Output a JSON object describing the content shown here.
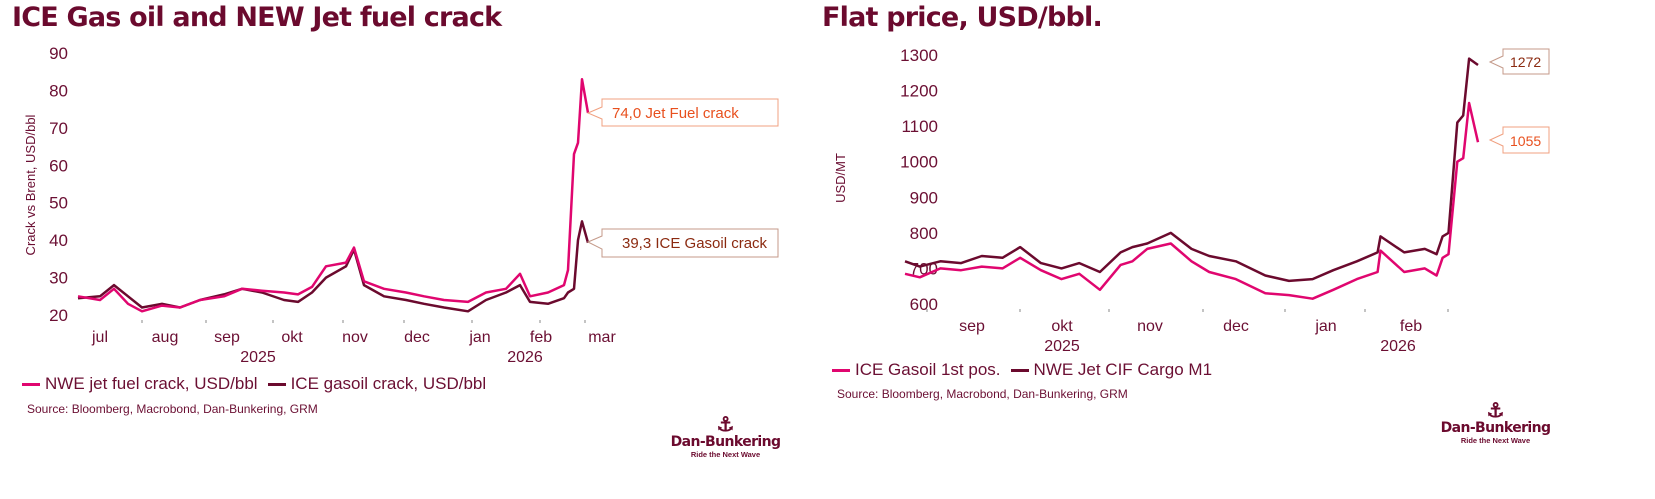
{
  "left": {
    "title": "ICE Gas oil and NEW Jet fuel crack",
    "legend": [
      {
        "label": "NWE jet fuel crack, USD/bbl",
        "color": "#e0066f"
      },
      {
        "label": "ICE gasoil crack, USD/bbl",
        "color": "#6b0a2e"
      }
    ],
    "source": "Source: Bloomberg, Macrobond, Dan-Bunkering, GRM",
    "callouts": [
      {
        "text": "74,0 Jet Fuel crack",
        "color": "#e8501e"
      },
      {
        "text": "39,3 ICE Gasoil crack",
        "color": "#8b2a10"
      }
    ]
  },
  "right": {
    "title": "Flat price, USD/bbl.",
    "legend": [
      {
        "label": "ICE Gasoil 1st pos.",
        "color": "#e0066f"
      },
      {
        "label": "NWE Jet CIF Cargo  M1",
        "color": "#6b0a2e"
      }
    ],
    "source": "Source: Bloomberg, Macrobond, Dan-Bunkering, GRM",
    "callouts": [
      {
        "text": "1272",
        "color": "#8b2a10"
      },
      {
        "text": "1055",
        "color": "#e8501e"
      }
    ]
  },
  "logo": {
    "name": "Dan-Bunkering",
    "tagline": "Ride the Next Wave"
  },
  "chart_data": [
    {
      "type": "line",
      "title": "ICE Gas oil and NEW Jet fuel crack",
      "xlabel": "",
      "ylabel": "Crack vs Brent, USD/bbl",
      "ylim": [
        20,
        90
      ],
      "yticks": [
        20,
        30,
        40,
        50,
        60,
        70,
        80,
        90
      ],
      "xticks": [
        "jul",
        "aug",
        "sep",
        "okt",
        "nov",
        "dec",
        "jan",
        "feb",
        "mar"
      ],
      "year_labels": [
        "2025",
        "2026"
      ],
      "grid": false,
      "legend_position": "bottom",
      "x": [
        "2025-06-20",
        "2025-07-01",
        "2025-07-08",
        "2025-07-15",
        "2025-07-22",
        "2025-08-01",
        "2025-08-10",
        "2025-08-20",
        "2025-09-01",
        "2025-09-10",
        "2025-09-20",
        "2025-10-01",
        "2025-10-08",
        "2025-10-15",
        "2025-10-22",
        "2025-11-01",
        "2025-11-05",
        "2025-11-10",
        "2025-11-20",
        "2025-12-01",
        "2025-12-10",
        "2025-12-20",
        "2026-01-01",
        "2026-01-10",
        "2026-01-20",
        "2026-01-27",
        "2026-02-01",
        "2026-02-10",
        "2026-02-18",
        "2026-02-20",
        "2026-02-23",
        "2026-02-25",
        "2026-02-27",
        "2026-03-02"
      ],
      "series": [
        {
          "name": "NWE jet fuel crack, USD/bbl",
          "color": "#e0066f",
          "values": [
            25,
            24,
            27,
            23,
            21,
            22.5,
            22,
            24,
            25,
            27,
            26.5,
            26,
            25.5,
            27.5,
            33,
            34,
            38,
            29,
            27,
            26,
            25,
            24,
            23.5,
            26,
            27,
            31,
            25,
            26,
            28,
            32,
            63,
            66,
            83,
            74
          ]
        },
        {
          "name": "ICE gasoil crack, USD/bbl",
          "color": "#6b0a2e",
          "values": [
            24.5,
            25,
            28,
            25,
            22,
            23,
            22,
            24,
            25.5,
            27,
            26,
            24,
            23.5,
            26,
            30,
            33,
            37.5,
            28,
            25,
            24,
            23,
            22,
            21,
            24,
            26,
            28,
            23.5,
            23,
            24.5,
            26,
            27,
            40,
            45,
            39.3
          ]
        }
      ],
      "annotations": [
        "74,0 Jet Fuel crack",
        "39,3 ICE Gasoil crack"
      ]
    },
    {
      "type": "line",
      "title": "Flat price, USD/bbl.",
      "xlabel": "",
      "ylabel": "USD/MT",
      "ylim": [
        600,
        1300
      ],
      "yticks": [
        600,
        700,
        800,
        900,
        1000,
        1100,
        1200,
        1300
      ],
      "xticks": [
        "sep",
        "okt",
        "nov",
        "dec",
        "jan",
        "feb"
      ],
      "year_labels": [
        "2025",
        "2026"
      ],
      "grid": false,
      "legend_position": "bottom",
      "x": [
        "2025-08-20",
        "2025-08-25",
        "2025-09-01",
        "2025-09-08",
        "2025-09-15",
        "2025-09-22",
        "2025-09-28",
        "2025-10-05",
        "2025-10-12",
        "2025-10-18",
        "2025-10-25",
        "2025-11-01",
        "2025-11-05",
        "2025-11-10",
        "2025-11-18",
        "2025-11-25",
        "2025-12-01",
        "2025-12-10",
        "2025-12-20",
        "2025-12-28",
        "2026-01-05",
        "2026-01-12",
        "2026-01-20",
        "2026-01-27",
        "2026-01-28",
        "2026-02-05",
        "2026-02-12",
        "2026-02-16",
        "2026-02-18",
        "2026-02-20",
        "2026-02-23",
        "2026-02-25",
        "2026-02-27",
        "2026-03-02"
      ],
      "series": [
        {
          "name": "ICE Gasoil 1st pos.",
          "color": "#e0066f",
          "values": [
            685,
            675,
            700,
            695,
            705,
            700,
            730,
            695,
            670,
            685,
            640,
            710,
            720,
            755,
            770,
            720,
            690,
            670,
            630,
            625,
            615,
            640,
            670,
            690,
            750,
            690,
            700,
            680,
            730,
            740,
            1000,
            1010,
            1165,
            1055
          ]
        },
        {
          "name": "NWE Jet CIF Cargo  M1",
          "color": "#6b0a2e",
          "values": [
            720,
            705,
            720,
            715,
            735,
            730,
            760,
            715,
            700,
            715,
            690,
            745,
            760,
            770,
            800,
            755,
            735,
            720,
            680,
            665,
            670,
            695,
            720,
            745,
            790,
            745,
            755,
            740,
            790,
            800,
            1110,
            1130,
            1290,
            1272
          ]
        }
      ],
      "annotations": [
        "1272",
        "1055"
      ]
    }
  ]
}
